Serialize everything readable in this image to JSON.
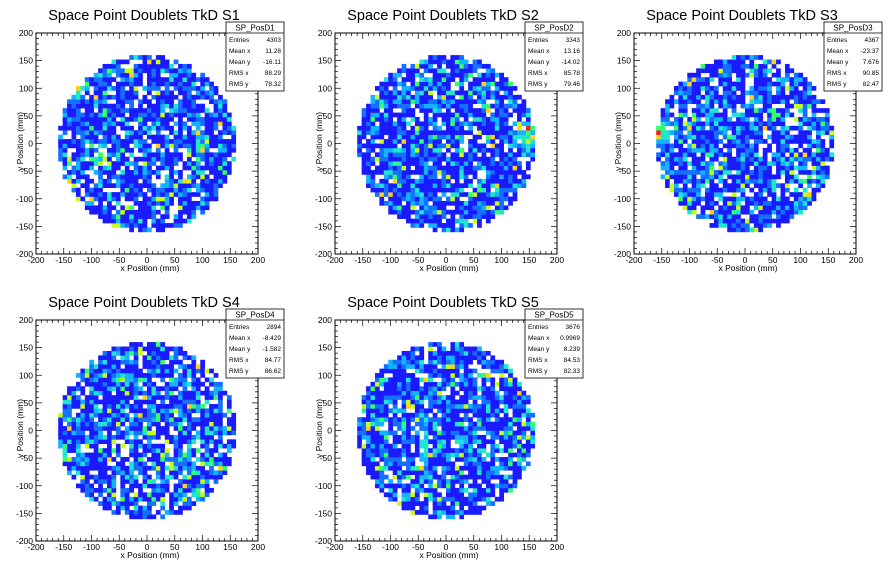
{
  "chart_data": [
    {
      "type": "heatmap",
      "title": "Space Point Doublets TkD S1",
      "xlabel": "x Position (mm)",
      "ylabel": "y Position (mm)",
      "xlim": [
        -200,
        200
      ],
      "ylim": [
        -200,
        200
      ],
      "x_ticks": [
        "-200",
        "-150",
        "-100",
        "-50",
        "0",
        "50",
        "100",
        "150",
        "200"
      ],
      "y_ticks": [
        "-200",
        "-150",
        "-100",
        "-50",
        "0",
        "50",
        "100",
        "150",
        "200"
      ],
      "disk_radius": 160,
      "stats": {
        "name": "SP_PosD1",
        "rows": [
          {
            "label": "Entries",
            "value": "4303"
          },
          {
            "label": "Mean x",
            "value": "11.28"
          },
          {
            "label": "Mean y",
            "value": "-16.11"
          },
          {
            "label": "RMS x",
            "value": "88.29"
          },
          {
            "label": "RMS y",
            "value": "78.32"
          }
        ]
      },
      "hotspots": [
        {
          "x": 95,
          "y": 0,
          "direction": "vertical-band"
        }
      ]
    },
    {
      "type": "heatmap",
      "title": "Space Point Doublets TkD S2",
      "xlabel": "x Position (mm)",
      "ylabel": "y Position (mm)",
      "xlim": [
        -200,
        200
      ],
      "ylim": [
        -200,
        200
      ],
      "x_ticks": [
        "-200",
        "-150",
        "-100",
        "-50",
        "0",
        "50",
        "100",
        "150",
        "200"
      ],
      "y_ticks": [
        "-200",
        "-150",
        "-100",
        "-50",
        "0",
        "50",
        "100",
        "150",
        "200"
      ],
      "disk_radius": 160,
      "stats": {
        "name": "SP_PosD2",
        "rows": [
          {
            "label": "Entries",
            "value": "3343"
          },
          {
            "label": "Mean x",
            "value": "13.16"
          },
          {
            "label": "Mean y",
            "value": "-14.02"
          },
          {
            "label": "RMS x",
            "value": "85.78"
          },
          {
            "label": "RMS y",
            "value": "79.46"
          }
        ]
      },
      "hotspots": [
        {
          "x": 150,
          "y": 10,
          "direction": "edge"
        }
      ]
    },
    {
      "type": "heatmap",
      "title": "Space Point Doublets TkD S3",
      "xlabel": "x Position (mm)",
      "ylabel": "y Position (mm)",
      "xlim": [
        -200,
        200
      ],
      "ylim": [
        -200,
        200
      ],
      "x_ticks": [
        "-200",
        "-150",
        "-100",
        "-50",
        "0",
        "50",
        "100",
        "150",
        "200"
      ],
      "y_ticks": [
        "-200",
        "-150",
        "-100",
        "-50",
        "0",
        "50",
        "100",
        "150",
        "200"
      ],
      "disk_radius": 160,
      "stats": {
        "name": "SP_PosD3",
        "rows": [
          {
            "label": "Entries",
            "value": "4367"
          },
          {
            "label": "Mean x",
            "value": "-23.37"
          },
          {
            "label": "Mean y",
            "value": "7.676"
          },
          {
            "label": "RMS x",
            "value": "90.85"
          },
          {
            "label": "RMS y",
            "value": "82.47"
          }
        ]
      },
      "hotspots": [
        {
          "x": -150,
          "y": 20,
          "direction": "edge"
        }
      ]
    },
    {
      "type": "heatmap",
      "title": "Space Point Doublets TkD S4",
      "xlabel": "x Position (mm)",
      "ylabel": "y Position (mm)",
      "xlim": [
        -200,
        200
      ],
      "ylim": [
        -200,
        200
      ],
      "x_ticks": [
        "-200",
        "-150",
        "-100",
        "-50",
        "0",
        "50",
        "100",
        "150",
        "200"
      ],
      "y_ticks": [
        "-200",
        "-150",
        "-100",
        "-50",
        "0",
        "50",
        "100",
        "150",
        "200"
      ],
      "disk_radius": 160,
      "stats": {
        "name": "SP_PosD4",
        "rows": [
          {
            "label": "Entries",
            "value": "2894"
          },
          {
            "label": "Mean x",
            "value": "-8.429"
          },
          {
            "label": "Mean y",
            "value": "-1.582"
          },
          {
            "label": "RMS x",
            "value": "84.77"
          },
          {
            "label": "RMS y",
            "value": "86.62"
          }
        ]
      },
      "hotspots": []
    },
    {
      "type": "heatmap",
      "title": "Space Point Doublets TkD S5",
      "xlabel": "x Position (mm)",
      "ylabel": "y Position (mm)",
      "xlim": [
        -200,
        200
      ],
      "ylim": [
        -200,
        200
      ],
      "x_ticks": [
        "-200",
        "-150",
        "-100",
        "-50",
        "0",
        "50",
        "100",
        "150",
        "200"
      ],
      "y_ticks": [
        "-200",
        "-150",
        "-100",
        "-50",
        "0",
        "50",
        "100",
        "150",
        "200"
      ],
      "disk_radius": 160,
      "stats": {
        "name": "SP_PosD5",
        "rows": [
          {
            "label": "Entries",
            "value": "3676"
          },
          {
            "label": "Mean x",
            "value": "0.9969"
          },
          {
            "label": "Mean y",
            "value": "8.239"
          },
          {
            "label": "RMS x",
            "value": "84.53"
          },
          {
            "label": "RMS y",
            "value": "82.33"
          }
        ]
      },
      "hotspots": [
        {
          "x": -40,
          "y": -30,
          "direction": "vertical-band"
        }
      ]
    }
  ],
  "colors": {
    "palette": [
      "#1a1aff",
      "#1470ff",
      "#12b4ff",
      "#20e6d0",
      "#33ff66",
      "#c8ff1a",
      "#ffd21a",
      "#ff1a1a"
    ],
    "frame": "#000000",
    "background": "#ffffff"
  }
}
